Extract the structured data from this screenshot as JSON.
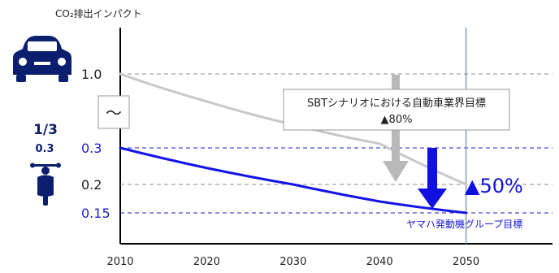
{
  "chart_data": {
    "type": "line",
    "title": "",
    "ylabel": "CO₂排出インパクト",
    "xlabel": "",
    "x": [
      2010,
      2020,
      2030,
      2040,
      2050
    ],
    "xlim": [
      2010,
      2060
    ],
    "series": [
      {
        "color": "#c8c8c8",
        "x": [
          2010,
          2020,
          2030,
          2040,
          2050
        ],
        "values": [
          1.0,
          0.74,
          0.52,
          0.34,
          0.2
        ]
      },
      {
        "color": "#1414e6",
        "x": [
          2010,
          2020,
          2030,
          2040,
          2050
        ],
        "values": [
          0.3,
          0.245,
          0.2,
          0.17,
          0.15
        ]
      }
    ],
    "y_tick_labels": [
      {
        "label": "1.0",
        "value": 1.0,
        "color": "#222222"
      },
      {
        "label": "0.3",
        "value": 0.3,
        "color": "#1a1ad6"
      },
      {
        "label": "0.2",
        "value": 0.2,
        "color": "#222222"
      },
      {
        "label": "0.15",
        "value": 0.15,
        "color": "#1a1ad6"
      }
    ],
    "axis_break_symbol": "〜",
    "vertical_reference_x": 2050,
    "annotations": {
      "sbt_box_line1": "SBTシナリオにおける自動車業界目標",
      "sbt_box_line2": "▲80%",
      "yamaha_target": "ヤマハ発動機グループ目標",
      "yamaha_reduction": "▲50%"
    },
    "icons": {
      "car": "car-icon",
      "motorcycle": "motorcycle-icon",
      "ratio_label": "1/3",
      "ratio_value": "0.3"
    },
    "grid": false,
    "colors": {
      "blue": "#1414e6",
      "gray": "#c8c8c8",
      "dark_navy": "#0b1f6e",
      "arrow_gray": "#b8b8b8"
    }
  }
}
